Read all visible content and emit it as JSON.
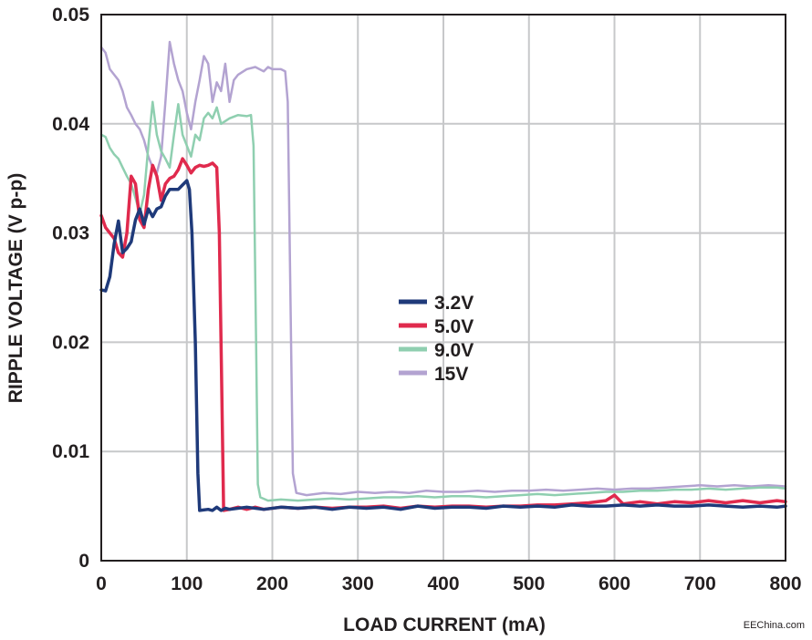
{
  "chart_data": {
    "type": "line",
    "title": "",
    "xlabel": "LOAD CURRENT (mA)",
    "ylabel": "RIPPLE VOLTAGE (V p-p)",
    "xlim": [
      0,
      800
    ],
    "ylim": [
      0,
      0.05
    ],
    "x_ticks": [
      0,
      100,
      200,
      300,
      400,
      500,
      600,
      700,
      800
    ],
    "y_ticks": [
      0,
      0.01,
      0.02,
      0.03,
      0.04,
      0.05
    ],
    "x_tick_labels": [
      "0",
      "100",
      "200",
      "300",
      "400",
      "500",
      "600",
      "700",
      "800"
    ],
    "y_tick_labels": [
      "0",
      "0.01",
      "0.02",
      "0.03",
      "0.04",
      "0.05"
    ],
    "grid": true,
    "legend_position": "center",
    "series": [
      {
        "name": "3.2V",
        "color": "#1f3a7a",
        "width": 3.5,
        "points": [
          [
            0,
            0.0248
          ],
          [
            5,
            0.0247
          ],
          [
            10,
            0.026
          ],
          [
            15,
            0.029
          ],
          [
            20,
            0.0311
          ],
          [
            25,
            0.0282
          ],
          [
            30,
            0.0286
          ],
          [
            35,
            0.0292
          ],
          [
            40,
            0.0312
          ],
          [
            45,
            0.0322
          ],
          [
            50,
            0.0308
          ],
          [
            55,
            0.0322
          ],
          [
            60,
            0.0315
          ],
          [
            65,
            0.0322
          ],
          [
            70,
            0.0324
          ],
          [
            75,
            0.0334
          ],
          [
            80,
            0.034
          ],
          [
            85,
            0.034
          ],
          [
            90,
            0.034
          ],
          [
            95,
            0.0344
          ],
          [
            100,
            0.0348
          ],
          [
            103,
            0.034
          ],
          [
            106,
            0.03
          ],
          [
            110,
            0.02
          ],
          [
            113,
            0.008
          ],
          [
            115,
            0.0046
          ],
          [
            125,
            0.0047
          ],
          [
            130,
            0.0046
          ],
          [
            135,
            0.0049
          ],
          [
            140,
            0.0046
          ],
          [
            145,
            0.0048
          ],
          [
            150,
            0.0047
          ],
          [
            170,
            0.0049
          ],
          [
            190,
            0.0047
          ],
          [
            210,
            0.0049
          ],
          [
            230,
            0.0048
          ],
          [
            250,
            0.0049
          ],
          [
            270,
            0.0047
          ],
          [
            290,
            0.0049
          ],
          [
            310,
            0.0048
          ],
          [
            330,
            0.0049
          ],
          [
            350,
            0.0047
          ],
          [
            370,
            0.005
          ],
          [
            390,
            0.0048
          ],
          [
            410,
            0.0049
          ],
          [
            430,
            0.0049
          ],
          [
            450,
            0.0048
          ],
          [
            470,
            0.005
          ],
          [
            490,
            0.0049
          ],
          [
            510,
            0.005
          ],
          [
            530,
            0.0049
          ],
          [
            550,
            0.0051
          ],
          [
            570,
            0.005
          ],
          [
            590,
            0.005
          ],
          [
            610,
            0.0051
          ],
          [
            630,
            0.005
          ],
          [
            650,
            0.0051
          ],
          [
            670,
            0.005
          ],
          [
            690,
            0.005
          ],
          [
            710,
            0.0051
          ],
          [
            730,
            0.005
          ],
          [
            750,
            0.0049
          ],
          [
            770,
            0.005
          ],
          [
            790,
            0.0049
          ],
          [
            800,
            0.005
          ]
        ]
      },
      {
        "name": "5.0V",
        "color": "#e02a4d",
        "width": 3.5,
        "points": [
          [
            0,
            0.0316
          ],
          [
            5,
            0.0305
          ],
          [
            10,
            0.03
          ],
          [
            15,
            0.0295
          ],
          [
            20,
            0.0282
          ],
          [
            25,
            0.0278
          ],
          [
            30,
            0.03
          ],
          [
            35,
            0.0352
          ],
          [
            40,
            0.0345
          ],
          [
            45,
            0.0312
          ],
          [
            50,
            0.0305
          ],
          [
            55,
            0.034
          ],
          [
            60,
            0.0362
          ],
          [
            65,
            0.0352
          ],
          [
            70,
            0.033
          ],
          [
            75,
            0.0345
          ],
          [
            80,
            0.035
          ],
          [
            85,
            0.0352
          ],
          [
            90,
            0.0358
          ],
          [
            95,
            0.0368
          ],
          [
            100,
            0.0362
          ],
          [
            105,
            0.0355
          ],
          [
            110,
            0.036
          ],
          [
            115,
            0.0362
          ],
          [
            120,
            0.0361
          ],
          [
            125,
            0.0362
          ],
          [
            130,
            0.0364
          ],
          [
            135,
            0.036
          ],
          [
            138,
            0.03
          ],
          [
            141,
            0.015
          ],
          [
            143,
            0.0046
          ],
          [
            150,
            0.0047
          ],
          [
            160,
            0.0049
          ],
          [
            170,
            0.0047
          ],
          [
            180,
            0.0049
          ],
          [
            190,
            0.0047
          ],
          [
            210,
            0.0049
          ],
          [
            230,
            0.0048
          ],
          [
            250,
            0.0049
          ],
          [
            270,
            0.0048
          ],
          [
            290,
            0.0049
          ],
          [
            310,
            0.0049
          ],
          [
            330,
            0.005
          ],
          [
            350,
            0.0048
          ],
          [
            370,
            0.005
          ],
          [
            390,
            0.0049
          ],
          [
            410,
            0.005
          ],
          [
            430,
            0.005
          ],
          [
            450,
            0.0049
          ],
          [
            470,
            0.005
          ],
          [
            490,
            0.005
          ],
          [
            510,
            0.0051
          ],
          [
            530,
            0.0051
          ],
          [
            550,
            0.0052
          ],
          [
            570,
            0.0053
          ],
          [
            590,
            0.0055
          ],
          [
            600,
            0.006
          ],
          [
            610,
            0.0052
          ],
          [
            630,
            0.0054
          ],
          [
            650,
            0.0052
          ],
          [
            670,
            0.0054
          ],
          [
            690,
            0.0053
          ],
          [
            710,
            0.0055
          ],
          [
            730,
            0.0053
          ],
          [
            750,
            0.0055
          ],
          [
            770,
            0.0053
          ],
          [
            790,
            0.0055
          ],
          [
            800,
            0.0054
          ]
        ]
      },
      {
        "name": "9.0V",
        "color": "#8fcfb0",
        "width": 2.5,
        "points": [
          [
            0,
            0.039
          ],
          [
            5,
            0.0388
          ],
          [
            10,
            0.0378
          ],
          [
            15,
            0.0372
          ],
          [
            20,
            0.0368
          ],
          [
            25,
            0.036
          ],
          [
            30,
            0.0352
          ],
          [
            35,
            0.0345
          ],
          [
            40,
            0.0332
          ],
          [
            45,
            0.0318
          ],
          [
            50,
            0.0335
          ],
          [
            55,
            0.038
          ],
          [
            60,
            0.042
          ],
          [
            65,
            0.039
          ],
          [
            70,
            0.0375
          ],
          [
            75,
            0.0368
          ],
          [
            80,
            0.036
          ],
          [
            85,
            0.039
          ],
          [
            90,
            0.0418
          ],
          [
            95,
            0.039
          ],
          [
            100,
            0.038
          ],
          [
            105,
            0.037
          ],
          [
            110,
            0.039
          ],
          [
            115,
            0.0385
          ],
          [
            120,
            0.0405
          ],
          [
            125,
            0.041
          ],
          [
            130,
            0.0405
          ],
          [
            135,
            0.0415
          ],
          [
            140,
            0.04
          ],
          [
            150,
            0.0405
          ],
          [
            160,
            0.0408
          ],
          [
            170,
            0.0407
          ],
          [
            175,
            0.0408
          ],
          [
            178,
            0.038
          ],
          [
            181,
            0.02
          ],
          [
            183,
            0.007
          ],
          [
            186,
            0.0058
          ],
          [
            195,
            0.0055
          ],
          [
            210,
            0.0056
          ],
          [
            230,
            0.0055
          ],
          [
            250,
            0.0056
          ],
          [
            270,
            0.0057
          ],
          [
            290,
            0.0056
          ],
          [
            310,
            0.0057
          ],
          [
            330,
            0.0058
          ],
          [
            350,
            0.0058
          ],
          [
            370,
            0.0059
          ],
          [
            390,
            0.0058
          ],
          [
            410,
            0.0059
          ],
          [
            430,
            0.0059
          ],
          [
            450,
            0.0058
          ],
          [
            470,
            0.0059
          ],
          [
            490,
            0.006
          ],
          [
            510,
            0.0061
          ],
          [
            530,
            0.006
          ],
          [
            550,
            0.0061
          ],
          [
            570,
            0.0062
          ],
          [
            590,
            0.0063
          ],
          [
            610,
            0.0063
          ],
          [
            630,
            0.0064
          ],
          [
            650,
            0.0064
          ],
          [
            670,
            0.0065
          ],
          [
            690,
            0.0065
          ],
          [
            710,
            0.0066
          ],
          [
            730,
            0.0065
          ],
          [
            750,
            0.0066
          ],
          [
            770,
            0.0067
          ],
          [
            790,
            0.0067
          ],
          [
            800,
            0.0066
          ]
        ]
      },
      {
        "name": "15V",
        "color": "#b3a3d1",
        "width": 2.5,
        "points": [
          [
            0,
            0.047
          ],
          [
            5,
            0.0465
          ],
          [
            10,
            0.045
          ],
          [
            15,
            0.0445
          ],
          [
            20,
            0.044
          ],
          [
            25,
            0.043
          ],
          [
            30,
            0.0415
          ],
          [
            35,
            0.0408
          ],
          [
            40,
            0.04
          ],
          [
            45,
            0.0395
          ],
          [
            50,
            0.0385
          ],
          [
            55,
            0.037
          ],
          [
            60,
            0.036
          ],
          [
            65,
            0.0355
          ],
          [
            70,
            0.037
          ],
          [
            75,
            0.042
          ],
          [
            80,
            0.0475
          ],
          [
            85,
            0.0455
          ],
          [
            90,
            0.044
          ],
          [
            95,
            0.043
          ],
          [
            100,
            0.041
          ],
          [
            105,
            0.0395
          ],
          [
            110,
            0.042
          ],
          [
            115,
            0.044
          ],
          [
            120,
            0.0462
          ],
          [
            125,
            0.0455
          ],
          [
            130,
            0.042
          ],
          [
            135,
            0.0438
          ],
          [
            140,
            0.043
          ],
          [
            145,
            0.0455
          ],
          [
            150,
            0.042
          ],
          [
            155,
            0.044
          ],
          [
            160,
            0.0445
          ],
          [
            170,
            0.045
          ],
          [
            180,
            0.0452
          ],
          [
            190,
            0.0448
          ],
          [
            195,
            0.0452
          ],
          [
            200,
            0.045
          ],
          [
            205,
            0.045
          ],
          [
            210,
            0.045
          ],
          [
            215,
            0.0448
          ],
          [
            218,
            0.042
          ],
          [
            221,
            0.025
          ],
          [
            224,
            0.008
          ],
          [
            228,
            0.0062
          ],
          [
            240,
            0.006
          ],
          [
            260,
            0.0062
          ],
          [
            280,
            0.0061
          ],
          [
            300,
            0.0063
          ],
          [
            320,
            0.0062
          ],
          [
            340,
            0.0063
          ],
          [
            360,
            0.0062
          ],
          [
            380,
            0.0064
          ],
          [
            400,
            0.0063
          ],
          [
            420,
            0.0063
          ],
          [
            440,
            0.0064
          ],
          [
            460,
            0.0063
          ],
          [
            480,
            0.0064
          ],
          [
            500,
            0.0064
          ],
          [
            520,
            0.0065
          ],
          [
            540,
            0.0064
          ],
          [
            560,
            0.0065
          ],
          [
            580,
            0.0066
          ],
          [
            600,
            0.0065
          ],
          [
            620,
            0.0066
          ],
          [
            640,
            0.0066
          ],
          [
            660,
            0.0067
          ],
          [
            680,
            0.0068
          ],
          [
            700,
            0.0069
          ],
          [
            720,
            0.0068
          ],
          [
            740,
            0.0069
          ],
          [
            760,
            0.0068
          ],
          [
            780,
            0.0069
          ],
          [
            800,
            0.0068
          ]
        ]
      }
    ]
  },
  "watermark": "EEChina.com"
}
